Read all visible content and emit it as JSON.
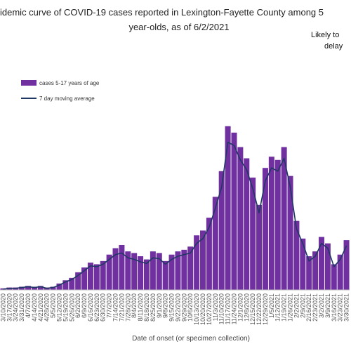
{
  "chart_data": {
    "type": "bar",
    "title_lines": [
      "idemic curve of COVID-19 cases reported in Lexington-Fayette County among 5",
      "year-olds, as of 6/2/2021"
    ],
    "annotation_lines": [
      "Likely to",
      "delay"
    ],
    "x_label": "Date of onset (or specimen collection)",
    "categories": [
      "3/10/2020",
      "3/17/2020",
      "3/24/2020",
      "3/31/2020",
      "4/7/2020",
      "4/14/2020",
      "4/21/2020",
      "4/28/2020",
      "5/5/2020",
      "5/12/2020",
      "5/19/2020",
      "5/26/2020",
      "6/2/2020",
      "6/9/2020",
      "6/16/2020",
      "6/23/2020",
      "6/30/2020",
      "7/7/2020",
      "7/14/2020",
      "7/21/2020",
      "7/28/2020",
      "8/4/2020",
      "8/11/2020",
      "8/18/2020",
      "8/25/2020",
      "9/1/2020",
      "9/8/2020",
      "9/15/2020",
      "9/22/2020",
      "9/29/2020",
      "10/6/2020",
      "10/13/2020",
      "10/20/2020",
      "10/27/2020",
      "11/3/2020",
      "11/10/2020",
      "11/17/2020",
      "11/24/2020",
      "12/1/2020",
      "12/8/2020",
      "12/15/2020",
      "12/22/2020",
      "12/29/2020",
      "1/5/2021",
      "1/12/2021",
      "1/19/2021",
      "1/26/2021",
      "2/2/2021",
      "2/9/2021",
      "2/16/2021",
      "2/23/2021",
      "3/2/2021",
      "3/9/2021",
      "3/16/2021",
      "3/23/2021",
      "3/30/2021"
    ],
    "series": [
      {
        "name": "cases 5-17 years of age",
        "type": "bar",
        "color": "#7030a0",
        "values": [
          0.2,
          0.3,
          0.3,
          0.4,
          0.5,
          0.4,
          0.5,
          0.3,
          0.4,
          0.8,
          1.2,
          1.5,
          2.2,
          2.8,
          3.4,
          3.2,
          3.6,
          4.4,
          5.2,
          5.6,
          4.8,
          4.6,
          4.2,
          3.8,
          4.8,
          4.6,
          3.6,
          4.4,
          4.8,
          5.0,
          5.4,
          6.8,
          7.4,
          9.0,
          11.6,
          14.8,
          20.4,
          19.6,
          17.8,
          16.4,
          14.0,
          10.6,
          15.2,
          16.6,
          16.2,
          17.8,
          14.2,
          8.6,
          6.4,
          4.2,
          4.8,
          6.6,
          5.8,
          3.2,
          4.4,
          6.2
        ]
      },
      {
        "name": "7 day moving average",
        "type": "line",
        "color": "#1f3864",
        "values": [
          0.1,
          0.2,
          0.2,
          0.3,
          0.4,
          0.3,
          0.4,
          0.2,
          0.3,
          0.6,
          1.0,
          1.3,
          1.8,
          2.4,
          3.0,
          2.9,
          3.2,
          3.8,
          4.4,
          4.6,
          4.0,
          3.8,
          3.5,
          3.3,
          4.0,
          3.9,
          3.2,
          3.8,
          4.2,
          4.4,
          4.6,
          5.8,
          6.4,
          7.8,
          10.2,
          12.8,
          18.4,
          18.0,
          16.2,
          15.0,
          12.6,
          9.6,
          13.6,
          15.2,
          14.8,
          16.4,
          12.8,
          7.6,
          5.8,
          3.6,
          4.2,
          5.8,
          5.2,
          2.9,
          3.8,
          5.5
        ]
      }
    ],
    "ylim": [
      0,
      30
    ],
    "grid": false
  }
}
